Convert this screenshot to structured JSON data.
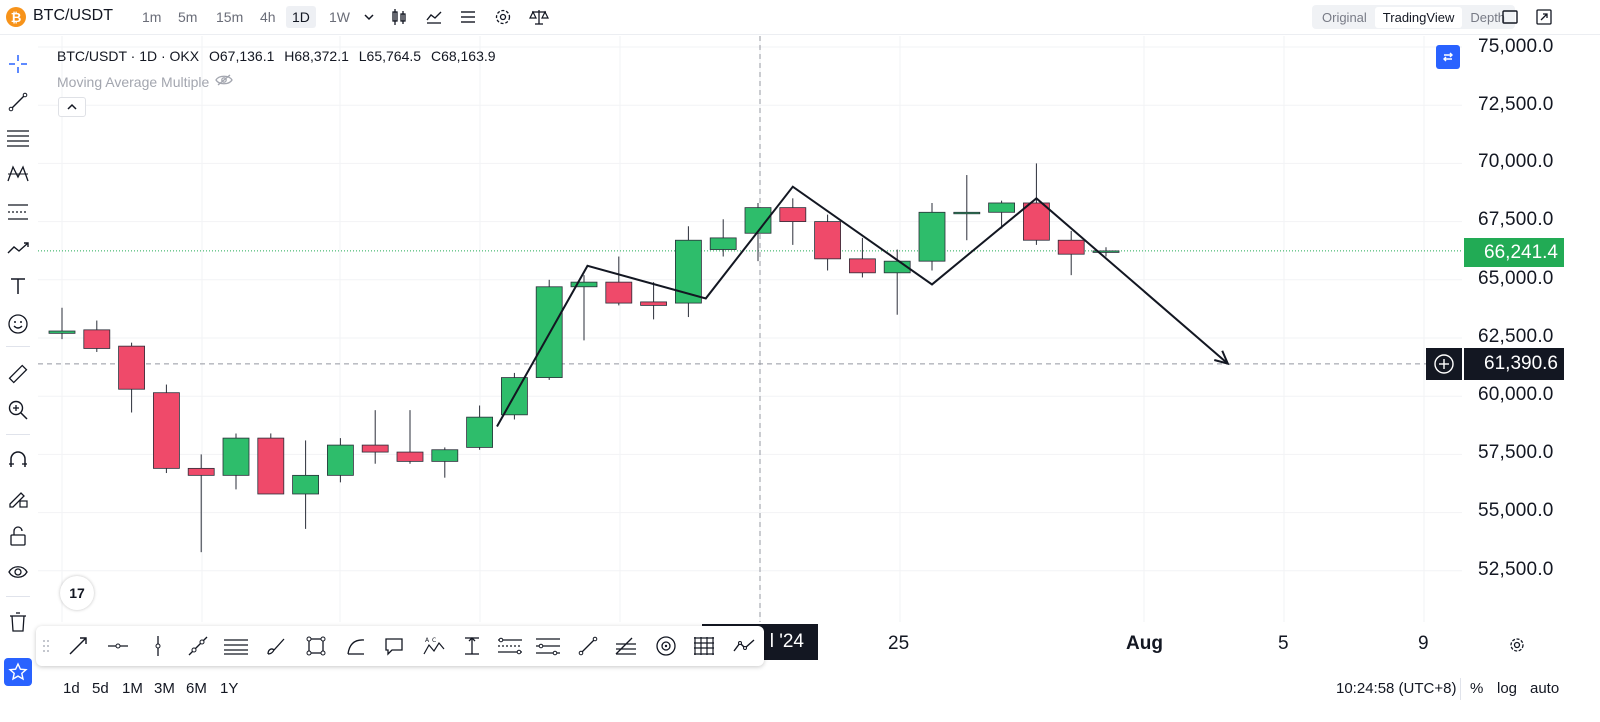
{
  "header": {
    "symbol": "BTC/USDT",
    "btc_icon": "bitcoin-icon",
    "timeframes": [
      "1m",
      "5m",
      "15m",
      "4h",
      "1D",
      "1W"
    ],
    "active_timeframe": "1D",
    "view_modes": [
      "Original",
      "TradingView",
      "Depth"
    ],
    "active_view": "TradingView"
  },
  "legend": {
    "title": "BTC/USDT · 1D · OKX",
    "open": "O67,136.1",
    "high": "H68,372.1",
    "low": "L65,764.5",
    "close": "C68,163.9",
    "indicator": "Moving Average Multiple"
  },
  "price_axis": {
    "labels": [
      "75,000.0",
      "72,500.0",
      "70,000.0",
      "67,500.0",
      "65,000.0",
      "62,500.0",
      "60,000.0",
      "57,500.0",
      "55,000.0",
      "52,500.0"
    ],
    "last_price": "66,241.4",
    "crosshair_price": "61,390.6"
  },
  "time_axis": {
    "crosshair_label": "l '24",
    "labels": [
      "25",
      "Aug",
      "5",
      "9"
    ]
  },
  "bottom": {
    "ranges": [
      "1d",
      "5d",
      "1M",
      "3M",
      "6M",
      "1Y"
    ],
    "clock": "10:24:58 (UTC+8)",
    "percent": "%",
    "log": "log",
    "auto": "auto"
  },
  "tv_logo": "17",
  "colors": {
    "up": "#22ab55",
    "down": "#f23645",
    "up_fill": "#2ebd6b",
    "down_fill": "#ef4a6a",
    "accent": "#2962ff",
    "last_price_bg": "#22ab55"
  },
  "chart_data": {
    "type": "candlestick",
    "symbol": "BTC/USDT",
    "interval": "1D",
    "exchange": "OKX",
    "candles": [
      {
        "o": 62700,
        "h": 63800,
        "l": 62450,
        "c": 62800
      },
      {
        "o": 62850,
        "h": 63250,
        "l": 61900,
        "c": 62050
      },
      {
        "o": 62150,
        "h": 62300,
        "l": 59300,
        "c": 60300
      },
      {
        "o": 60150,
        "h": 60500,
        "l": 56700,
        "c": 56900
      },
      {
        "o": 56900,
        "h": 57500,
        "l": 53300,
        "c": 56600
      },
      {
        "o": 56600,
        "h": 58400,
        "l": 56000,
        "c": 58200
      },
      {
        "o": 58200,
        "h": 58400,
        "l": 55800,
        "c": 55800
      },
      {
        "o": 55800,
        "h": 58100,
        "l": 54300,
        "c": 56600
      },
      {
        "o": 56600,
        "h": 58200,
        "l": 56300,
        "c": 57900
      },
      {
        "o": 57900,
        "h": 59400,
        "l": 57100,
        "c": 57600
      },
      {
        "o": 57600,
        "h": 59400,
        "l": 57100,
        "c": 57200
      },
      {
        "o": 57200,
        "h": 57800,
        "l": 56500,
        "c": 57700
      },
      {
        "o": 57800,
        "h": 59600,
        "l": 57700,
        "c": 59100
      },
      {
        "o": 59200,
        "h": 61000,
        "l": 59000,
        "c": 60800
      },
      {
        "o": 60800,
        "h": 65000,
        "l": 60700,
        "c": 64700
      },
      {
        "o": 64700,
        "h": 65200,
        "l": 62400,
        "c": 64900
      },
      {
        "o": 64900,
        "h": 66000,
        "l": 63900,
        "c": 64000
      },
      {
        "o": 64050,
        "h": 64900,
        "l": 63300,
        "c": 63900
      },
      {
        "o": 64000,
        "h": 67300,
        "l": 63400,
        "c": 66700
      },
      {
        "o": 66300,
        "h": 67600,
        "l": 66000,
        "c": 66800
      },
      {
        "o": 67000,
        "h": 68300,
        "l": 65800,
        "c": 68100
      },
      {
        "o": 68100,
        "h": 68500,
        "l": 66500,
        "c": 67500
      },
      {
        "o": 67500,
        "h": 67800,
        "l": 65400,
        "c": 65900
      },
      {
        "o": 65900,
        "h": 66800,
        "l": 65100,
        "c": 65300
      },
      {
        "o": 65300,
        "h": 66300,
        "l": 63500,
        "c": 65800
      },
      {
        "o": 65800,
        "h": 68300,
        "l": 65400,
        "c": 67900
      },
      {
        "o": 67900,
        "h": 69500,
        "l": 66700,
        "c": 67900
      },
      {
        "o": 67900,
        "h": 68400,
        "l": 67200,
        "c": 68300
      },
      {
        "o": 68300,
        "h": 70000,
        "l": 66500,
        "c": 66700
      },
      {
        "o": 66700,
        "h": 67100,
        "l": 65200,
        "c": 66100
      },
      {
        "o": 66241,
        "h": 66400,
        "l": 66000,
        "c": 66241
      }
    ],
    "drawing": {
      "type": "polyline-arrow",
      "points": [
        {
          "bar": 12.5,
          "price": 58700
        },
        {
          "bar": 15.1,
          "price": 65600
        },
        {
          "bar": 18.5,
          "price": 64200
        },
        {
          "bar": 21.0,
          "price": 69000
        },
        {
          "bar": 25.0,
          "price": 64800
        },
        {
          "bar": 28.0,
          "price": 68500
        },
        {
          "bar": 33.5,
          "price": 61400
        }
      ]
    },
    "ylim": [
      50500,
      75800
    ],
    "last_price": 66241.4,
    "crosshair_price": 61390.6
  }
}
